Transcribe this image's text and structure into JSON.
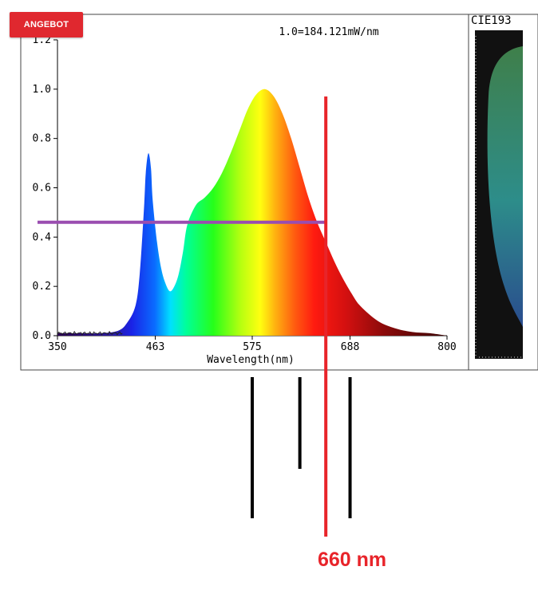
{
  "badge": {
    "label": "ANGEBOT",
    "color": "#e0282f"
  },
  "chart_data": {
    "type": "area",
    "title": "1.0=184.121mW/nm",
    "xlabel": "Wavelength(nm)",
    "ylabel": "",
    "xlim": [
      350,
      800
    ],
    "ylim": [
      0,
      1.2
    ],
    "xticks": [
      "350",
      "463",
      "575",
      "688",
      "800"
    ],
    "yticks": [
      "0.0",
      "0.2",
      "0.4",
      "0.6",
      "0.8",
      "1.0",
      "1.2"
    ],
    "grid": false,
    "series": [
      {
        "x": [
          350,
          380,
          400,
          420,
          430,
          440,
          445,
          450,
          452,
          455,
          458,
          460,
          465,
          470,
          475,
          480,
          485,
          490,
          495,
          500,
          510,
          520,
          530,
          540,
          550,
          560,
          570,
          580,
          590,
          600,
          610,
          620,
          630,
          640,
          650,
          660,
          670,
          680,
          690,
          700,
          720,
          740,
          760,
          780,
          800
        ],
        "values": [
          0.01,
          0.01,
          0.01,
          0.02,
          0.05,
          0.12,
          0.25,
          0.52,
          0.66,
          0.74,
          0.68,
          0.55,
          0.38,
          0.27,
          0.21,
          0.18,
          0.2,
          0.25,
          0.34,
          0.45,
          0.53,
          0.56,
          0.6,
          0.66,
          0.74,
          0.83,
          0.92,
          0.98,
          1.0,
          0.97,
          0.9,
          0.8,
          0.68,
          0.56,
          0.46,
          0.38,
          0.3,
          0.23,
          0.17,
          0.12,
          0.06,
          0.03,
          0.015,
          0.01,
          0.0
        ]
      }
    ],
    "annotations": {
      "horizontal_line": {
        "y": 0.46,
        "color": "#9a4db0"
      },
      "red_line": {
        "x": 660,
        "color": "#e8242a",
        "label": "660 nm"
      },
      "black_markers_x": [
        575,
        630,
        688
      ]
    }
  },
  "cie_panel": {
    "title": "CIE193"
  },
  "annotation_label": "660 nm"
}
